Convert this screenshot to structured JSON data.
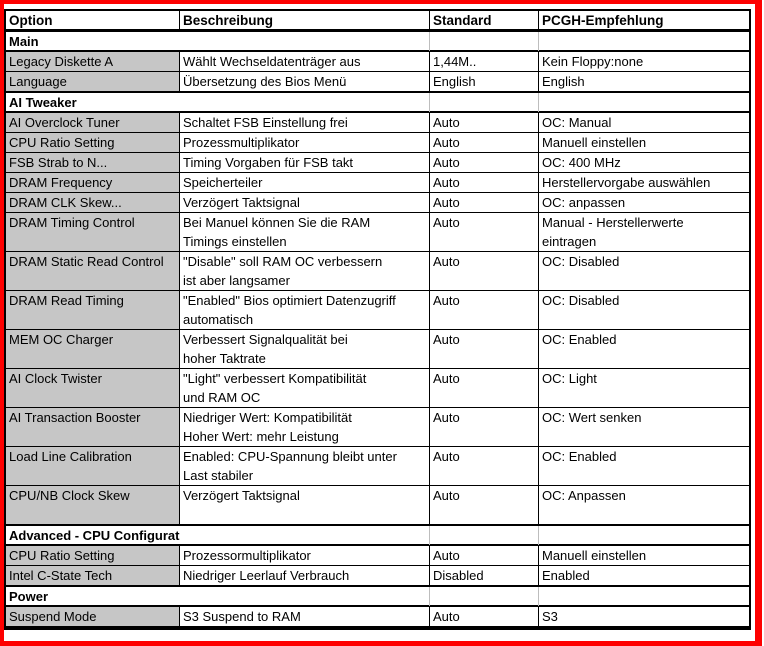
{
  "table": {
    "columns": [
      "Option",
      "Beschreibung",
      "Standard",
      "PCGH-Empfehlung"
    ],
    "rows": [
      {
        "type": "section",
        "label": "Main"
      },
      {
        "type": "data",
        "option": "Legacy Diskette A",
        "desc": [
          "Wählt Wechseldatenträger aus"
        ],
        "standard": "1,44M..",
        "pcgh": [
          "Kein Floppy:none"
        ]
      },
      {
        "type": "data",
        "option": "Language",
        "desc": [
          "Übersetzung des Bios Menü"
        ],
        "standard": "English",
        "pcgh": [
          "English"
        ]
      },
      {
        "type": "section",
        "label": "AI Tweaker"
      },
      {
        "type": "data",
        "option": "AI Overclock Tuner",
        "desc": [
          "Schaltet FSB Einstellung frei"
        ],
        "standard": "Auto",
        "pcgh": [
          "OC: Manual"
        ]
      },
      {
        "type": "data",
        "option": "CPU Ratio Setting",
        "desc": [
          "Prozessmultiplikator"
        ],
        "standard": "Auto",
        "pcgh": [
          "Manuell einstellen"
        ]
      },
      {
        "type": "data",
        "option": "FSB Strab to N...",
        "desc": [
          "Timing Vorgaben für FSB takt"
        ],
        "standard": "Auto",
        "pcgh": [
          "OC: 400 MHz"
        ]
      },
      {
        "type": "data",
        "option": "DRAM Frequency",
        "desc": [
          "Speicherteiler"
        ],
        "standard": "Auto",
        "pcgh": [
          "Herstellervorgabe auswählen"
        ]
      },
      {
        "type": "data",
        "option": "DRAM CLK Skew...",
        "desc": [
          "Verzögert Taktsignal"
        ],
        "standard": "Auto",
        "pcgh": [
          "OC: anpassen"
        ]
      },
      {
        "type": "data",
        "option": "DRAM Timing Control",
        "desc": [
          "Bei Manuel können Sie die RAM",
          "Timings einstellen"
        ],
        "standard": "Auto",
        "pcgh": [
          "Manual - Herstellerwerte",
          "eintragen"
        ]
      },
      {
        "type": "data",
        "option": "DRAM Static Read Control",
        "desc": [
          "\"Disable\" soll RAM OC verbessern",
          "ist aber langsamer"
        ],
        "standard": "Auto",
        "pcgh": [
          "OC: Disabled"
        ]
      },
      {
        "type": "data",
        "option": "DRAM Read Timing",
        "desc": [
          "\"Enabled\" Bios optimiert Datenzugriff",
          "automatisch"
        ],
        "standard": "Auto",
        "pcgh": [
          "OC: Disabled"
        ]
      },
      {
        "type": "data",
        "option": "MEM OC Charger",
        "desc": [
          "Verbessert Signalqualität bei",
          "hoher Taktrate"
        ],
        "standard": "Auto",
        "pcgh": [
          "OC: Enabled"
        ]
      },
      {
        "type": "data",
        "option": "AI Clock Twister",
        "desc": [
          "\"Light\" verbessert Kompatibilität",
          "und RAM OC"
        ],
        "standard": "Auto",
        "pcgh": [
          "OC: Light"
        ]
      },
      {
        "type": "data",
        "option": "AI Transaction Booster",
        "desc": [
          "Niedriger Wert: Kompatibilität",
          "Hoher Wert: mehr Leistung"
        ],
        "standard": "Auto",
        "pcgh": [
          "OC: Wert senken"
        ]
      },
      {
        "type": "data",
        "option": "Load Line Calibration",
        "desc": [
          "Enabled: CPU-Spannung bleibt unter",
          "Last stabiler"
        ],
        "standard": "Auto",
        "pcgh": [
          "OC: Enabled"
        ]
      },
      {
        "type": "data",
        "option": "CPU/NB Clock Skew",
        "desc": [
          "Verzögert Taktsignal",
          ""
        ],
        "standard": "Auto",
        "pcgh": [
          "OC: Anpassen"
        ]
      },
      {
        "type": "section",
        "label": "Advanced - CPU Configuration"
      },
      {
        "type": "data",
        "option": "CPU Ratio Setting",
        "desc": [
          "Prozessormultiplikator"
        ],
        "standard": "Auto",
        "pcgh": [
          "Manuell einstellen"
        ]
      },
      {
        "type": "data",
        "option": "Intel C-State Tech",
        "desc": [
          "Niedriger Leerlauf Verbrauch"
        ],
        "standard": "Disabled",
        "pcgh": [
          "Enabled"
        ]
      },
      {
        "type": "section",
        "label": "Power"
      },
      {
        "type": "data",
        "option": "Suspend Mode",
        "desc": [
          "S3 Suspend to RAM"
        ],
        "standard": "Auto",
        "pcgh": [
          "S3"
        ]
      }
    ]
  },
  "colors": {
    "annotation_frame_red": "#fe0000",
    "option_cell_gray": "#c6c6c6",
    "grid_black": "#000000",
    "faint_gridline_gray": "#bdbdbd"
  }
}
